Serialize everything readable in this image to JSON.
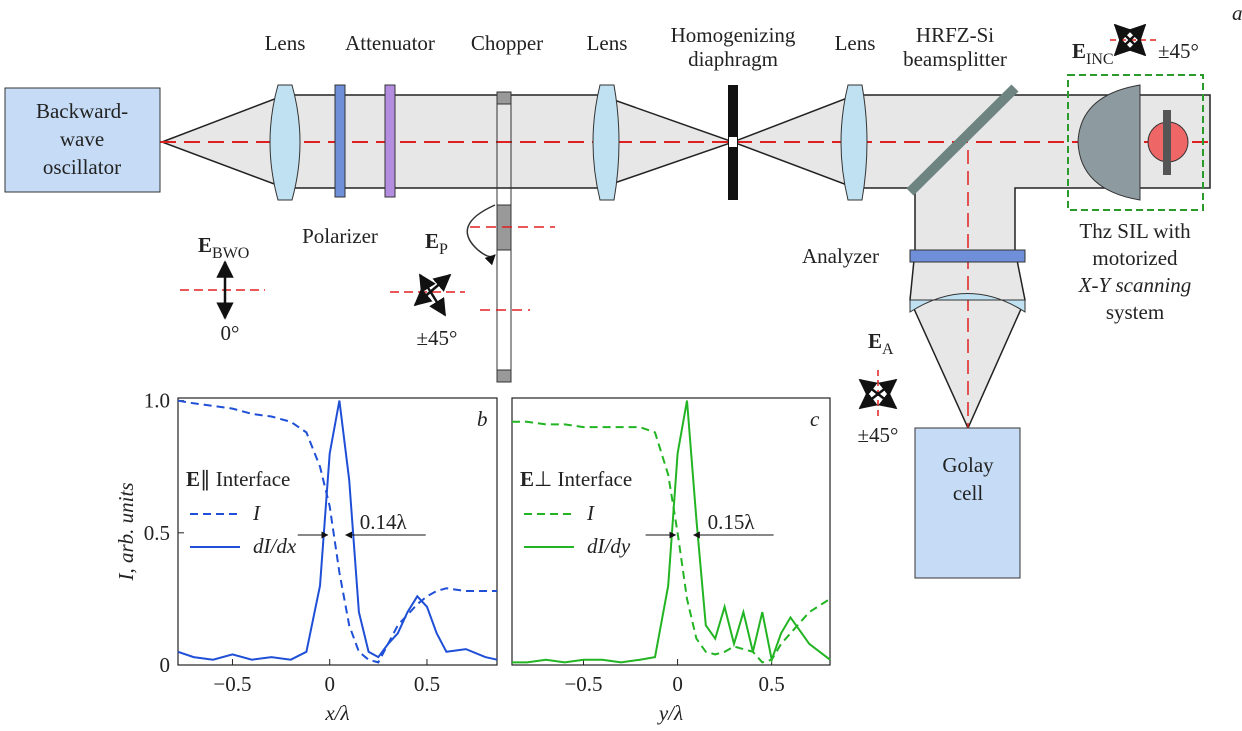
{
  "panel_label": "a",
  "diagram": {
    "lens_labels": [
      "Lens",
      "Lens",
      "Lens"
    ],
    "attenuator": "Attenuator",
    "chopper": "Chopper",
    "diaphragm": [
      "Homogenizing",
      "diaphragm"
    ],
    "beamsplitter": [
      "HRFZ-Si",
      "beamsplitter"
    ],
    "source": [
      "Backward-",
      "wave",
      "oscillator"
    ],
    "polarizer": "Polarizer",
    "analyzer": "Analyzer",
    "sil": [
      "Thz SIL with",
      "motorized",
      "X-Y scanning",
      "system"
    ],
    "detector": [
      "Golay",
      "cell"
    ],
    "fields": [
      {
        "symbol": "E",
        "subscript": "BWO",
        "angle": "0°"
      },
      {
        "symbol": "E",
        "subscript": "P",
        "angle": "±45°"
      },
      {
        "symbol": "E",
        "subscript": "A",
        "angle": "±45°"
      },
      {
        "symbol": "E",
        "subscript": "INC",
        "angle": "±45°"
      }
    ]
  },
  "chart_data": [
    {
      "type": "line",
      "panel_label": "b",
      "xlabel": "x/λ",
      "ylabel": "I, arb. units",
      "x": [
        -0.78,
        -0.7,
        -0.6,
        -0.5,
        -0.4,
        -0.3,
        -0.2,
        -0.12,
        -0.05,
        0,
        0.05,
        0.1,
        0.15,
        0.2,
        0.25,
        0.3,
        0.35,
        0.4,
        0.45,
        0.5,
        0.55,
        0.6,
        0.7,
        0.8,
        0.86
      ],
      "xlim": [
        -0.78,
        0.86
      ],
      "ylim": [
        0,
        1.01
      ],
      "xticks": [
        {
          "value": -0.5,
          "label": "−0.5"
        },
        0,
        0.5
      ],
      "yticks": [
        0,
        0.5,
        {
          "value": 1,
          "label": "1.0"
        }
      ],
      "legend_title": {
        "symbol": "E",
        "text": "∥ Interface"
      },
      "annotation": "0.14λ",
      "series": [
        {
          "name": "I",
          "color": "#1f4fd6",
          "style": "dashed",
          "values": [
            1,
            0.99,
            0.98,
            0.97,
            0.95,
            0.94,
            0.92,
            0.88,
            0.75,
            0.6,
            0.35,
            0.15,
            0.05,
            0.02,
            0.01,
            0.08,
            0.15,
            0.19,
            0.23,
            0.26,
            0.28,
            0.29,
            0.28,
            0.28,
            0.28
          ]
        },
        {
          "name": "dI/dx",
          "color": "#1f4fd6",
          "style": "solid",
          "values": [
            0.05,
            0.03,
            0.02,
            0.04,
            0.02,
            0.03,
            0.02,
            0.05,
            0.3,
            0.8,
            1.0,
            0.7,
            0.2,
            0.05,
            0.03,
            0.08,
            0.12,
            0.2,
            0.26,
            0.22,
            0.12,
            0.05,
            0.06,
            0.03,
            0.02
          ]
        }
      ]
    },
    {
      "type": "line",
      "panel_label": "c",
      "xlabel": "y/λ",
      "x": [
        -0.88,
        -0.8,
        -0.7,
        -0.6,
        -0.5,
        -0.4,
        -0.3,
        -0.2,
        -0.12,
        -0.05,
        0,
        0.05,
        0.1,
        0.15,
        0.2,
        0.25,
        0.3,
        0.35,
        0.4,
        0.45,
        0.5,
        0.55,
        0.6,
        0.7,
        0.81
      ],
      "xlim": [
        -0.88,
        0.81
      ],
      "ylim": [
        0,
        1.01
      ],
      "xticks": [
        {
          "value": -0.5,
          "label": "−0.5"
        },
        0,
        0.5
      ],
      "legend_title": {
        "symbol": "E",
        "text": "⊥ Interface"
      },
      "annotation": "0.15λ",
      "series": [
        {
          "name": "I",
          "color": "#22b422",
          "style": "dashed",
          "values": [
            0.92,
            0.92,
            0.91,
            0.91,
            0.9,
            0.9,
            0.9,
            0.9,
            0.88,
            0.72,
            0.5,
            0.25,
            0.1,
            0.05,
            0.04,
            0.05,
            0.07,
            0.06,
            0.05,
            0.01,
            0.02,
            0.08,
            0.12,
            0.2,
            0.25
          ]
        },
        {
          "name": "dI/dy",
          "color": "#22b422",
          "style": "solid",
          "values": [
            0.01,
            0.01,
            0.02,
            0.01,
            0.02,
            0.02,
            0.01,
            0.02,
            0.03,
            0.3,
            0.8,
            1.0,
            0.55,
            0.15,
            0.1,
            0.22,
            0.08,
            0.2,
            0.05,
            0.2,
            0.02,
            0.12,
            0.18,
            0.08,
            0.02
          ]
        }
      ]
    }
  ]
}
